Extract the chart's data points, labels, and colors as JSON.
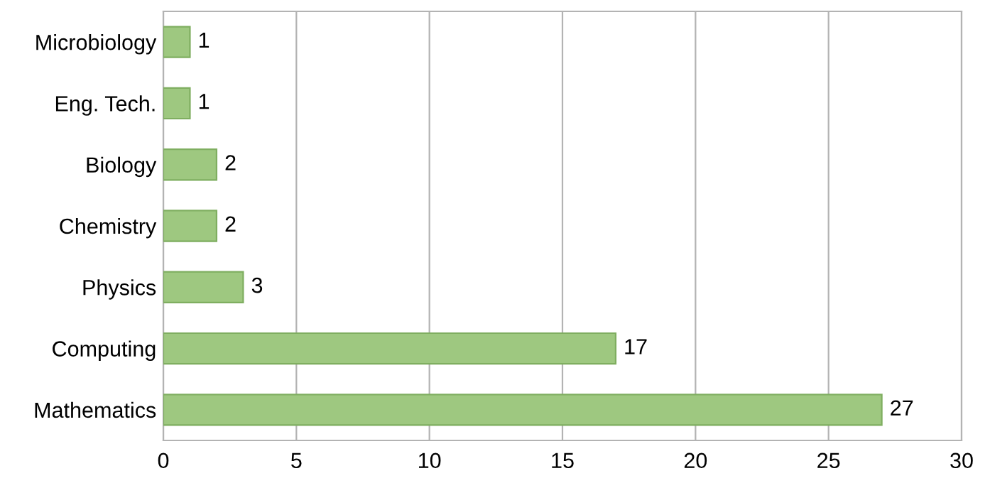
{
  "chart_data": {
    "type": "bar",
    "orientation": "horizontal",
    "categories": [
      "Microbiology",
      "Eng. Tech.",
      "Biology",
      "Chemistry",
      "Physics",
      "Computing",
      "Mathematics"
    ],
    "values": [
      1,
      1,
      2,
      2,
      3,
      17,
      27
    ],
    "color": "#9ec880",
    "xlim": [
      0,
      30
    ],
    "xticks": [
      0,
      5,
      10,
      15,
      20,
      25,
      30
    ],
    "grid": "x",
    "data_labels": true,
    "legend": false
  }
}
